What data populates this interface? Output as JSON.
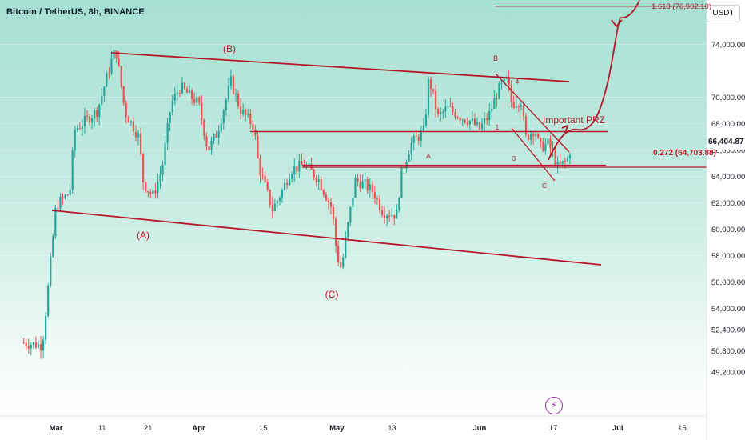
{
  "header": {
    "title": "Bitcoin / TetherUS, 8h, BINANCE",
    "currency": "USDT",
    "last_price": "66,404.87"
  },
  "colors": {
    "up_candle": "#26a69a",
    "down_candle": "#ef5350",
    "annotation": "#b5182a",
    "grid": "#e6ecf0"
  },
  "chart_data": {
    "type": "candlestick",
    "title": "Bitcoin / TetherUS, 8h, BINANCE",
    "y_axis": {
      "ticks": [
        "74,000.00",
        "70,000.00",
        "68,000.00",
        "66,000.00",
        "64,000.00",
        "62,000.00",
        "60,000.00",
        "58,000.00",
        "56,000.00",
        "54,000.00",
        "52,400.00",
        "50,800.00",
        "49,200.00"
      ],
      "tick_values": [
        74000,
        70000,
        68000,
        66000,
        64000,
        62000,
        60000,
        58000,
        56000,
        54000,
        52400,
        50800,
        49200
      ],
      "ylim": [
        48500,
        77600
      ]
    },
    "x_axis": {
      "ticks": [
        "Mar",
        "11",
        "21",
        "Apr",
        "15",
        "May",
        "13",
        "Jun",
        "17",
        "Jul",
        "15"
      ]
    },
    "price_path": [
      [
        "2024-02-23",
        51400
      ],
      [
        "2024-02-27",
        51200
      ],
      [
        "2024-02-28",
        54500
      ],
      [
        "2024-03-01",
        61800
      ],
      [
        "2024-03-04",
        62800
      ],
      [
        "2024-03-05",
        67500
      ],
      [
        "2024-03-08",
        68400
      ],
      [
        "2024-03-10",
        69000
      ],
      [
        "2024-03-13",
        72700
      ],
      [
        "2024-03-14",
        73600
      ],
      [
        "2024-03-16",
        68900
      ],
      [
        "2024-03-19",
        67000
      ],
      [
        "2024-03-20",
        63500
      ],
      [
        "2024-03-22",
        62500
      ],
      [
        "2024-03-24",
        64500
      ],
      [
        "2024-03-26",
        69500
      ],
      [
        "2024-03-28",
        70800
      ],
      [
        "2024-04-01",
        69500
      ],
      [
        "2024-04-03",
        66000
      ],
      [
        "2024-04-05",
        67300
      ],
      [
        "2024-04-08",
        71200
      ],
      [
        "2024-04-10",
        69100
      ],
      [
        "2024-04-13",
        67800
      ],
      [
        "2024-04-14",
        64800
      ],
      [
        "2024-04-17",
        61500
      ],
      [
        "2024-04-19",
        62800
      ],
      [
        "2024-04-21",
        64500
      ],
      [
        "2024-04-24",
        64900
      ],
      [
        "2024-04-27",
        63800
      ],
      [
        "2024-04-30",
        61500
      ],
      [
        "2024-05-01",
        58000
      ],
      [
        "2024-05-02",
        57000
      ],
      [
        "2024-05-03",
        59400
      ],
      [
        "2024-05-05",
        63700
      ],
      [
        "2024-05-07",
        63400
      ],
      [
        "2024-05-09",
        62800
      ],
      [
        "2024-05-11",
        61300
      ],
      [
        "2024-05-14",
        61100
      ],
      [
        "2024-05-15",
        64200
      ],
      [
        "2024-05-17",
        66400
      ],
      [
        "2024-05-20",
        67500
      ],
      [
        "2024-05-21",
        71500
      ],
      [
        "2024-05-23",
        68500
      ],
      [
        "2024-05-25",
        69200
      ],
      [
        "2024-05-28",
        68500
      ],
      [
        "2024-05-30",
        68200
      ],
      [
        "2024-06-01",
        67600
      ],
      [
        "2024-06-03",
        68600
      ],
      [
        "2024-06-05",
        70500
      ],
      [
        "2024-06-07",
        71300
      ],
      [
        "2024-06-08",
        69500
      ],
      [
        "2024-06-10",
        69800
      ],
      [
        "2024-06-11",
        66900
      ],
      [
        "2024-06-13",
        67600
      ],
      [
        "2024-06-14",
        66200
      ],
      [
        "2024-06-16",
        66500
      ],
      [
        "2024-06-18",
        64700
      ],
      [
        "2024-06-20",
        65200
      ],
      [
        "2024-06-21",
        66400
      ]
    ],
    "annotations": {
      "wave_labels": [
        "(A)",
        "(B)",
        "(C)"
      ],
      "sub_labels": [
        "A",
        "B",
        "C",
        "1",
        "2",
        "3",
        "4"
      ],
      "important_prz": "Important PRZ",
      "fib_top": "1.618 (76,902.10)",
      "fib_level": "0.272 (64,703.88)",
      "fib_level_value": 64703.88,
      "fib_top_value": 76902.1,
      "horizontal_level_value": 67400
    }
  }
}
